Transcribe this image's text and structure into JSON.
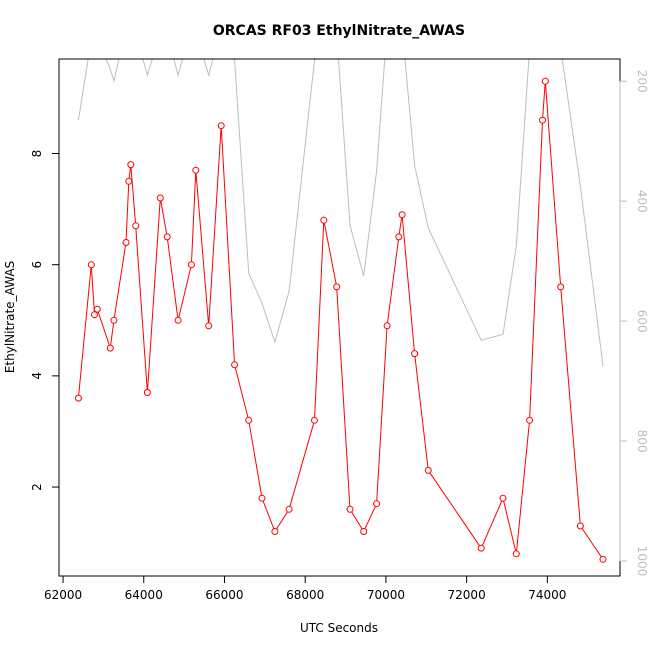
{
  "chart_data": {
    "type": "line",
    "title": "ORCAS RF03 EthylNitrate_AWAS",
    "xlabel": "UTC Seconds",
    "ylabel": "EthylNitrate_AWAS",
    "xlim": [
      61900,
      75800
    ],
    "ylim": [
      0.4,
      9.7
    ],
    "x_ticks": [
      62000,
      64000,
      66000,
      68000,
      70000,
      72000,
      74000
    ],
    "y_ticks": [
      2,
      4,
      6,
      8
    ],
    "y2lim": [
      1025,
      163
    ],
    "y2_ticks": [
      200,
      400,
      600,
      800,
      1000
    ],
    "series": [
      {
        "color": "#ff0000",
        "marker": "open-circle",
        "x": [
          62380,
          62700,
          62780,
          62850,
          63170,
          63260,
          63560,
          63630,
          63680,
          63800,
          64090,
          64410,
          64580,
          64850,
          65180,
          65290,
          65610,
          65920,
          66250,
          66600,
          66930,
          67250,
          67600,
          68230,
          68460,
          68780,
          69110,
          69450,
          69770,
          70030,
          70320,
          70400,
          70710,
          71050,
          72360,
          72900,
          73230,
          73560,
          73880,
          73950,
          74330,
          74820,
          75380
        ],
        "y": [
          3.6,
          6.0,
          5.1,
          5.2,
          4.5,
          5.0,
          6.4,
          7.5,
          7.8,
          6.7,
          3.7,
          7.2,
          6.5,
          5.0,
          6.0,
          7.7,
          4.9,
          8.5,
          4.2,
          3.2,
          1.8,
          1.2,
          1.6,
          3.2,
          6.8,
          5.6,
          1.6,
          1.2,
          1.7,
          4.9,
          6.5,
          6.9,
          4.4,
          2.3,
          0.9,
          1.8,
          0.8,
          3.2,
          8.6,
          9.3,
          5.6,
          1.3,
          0.7
        ]
      },
      {
        "color": "#bebebe",
        "axis": "right",
        "x": [
          62380,
          62700,
          62780,
          62850,
          63170,
          63260,
          63560,
          63630,
          63680,
          63800,
          64090,
          64410,
          64580,
          64850,
          65180,
          65290,
          65610,
          65920,
          66250,
          66600,
          66930,
          67250,
          67600,
          68230,
          68460,
          68780,
          69110,
          69450,
          69770,
          70030,
          70320,
          70400,
          70710,
          71050,
          72360,
          72900,
          73230,
          73560,
          73880,
          73950,
          74330,
          74820,
          75380
        ],
        "y": [
          265,
          130,
          120,
          130,
          180,
          200,
          110,
          120,
          150,
          120,
          190,
          120,
          120,
          190,
          110,
          120,
          190,
          110,
          165,
          520,
          570,
          635,
          550,
          165,
          100,
          120,
          440,
          525,
          350,
          110,
          120,
          110,
          340,
          445,
          632,
          622,
          475,
          145,
          100,
          100,
          145,
          375,
          675
        ]
      }
    ]
  }
}
